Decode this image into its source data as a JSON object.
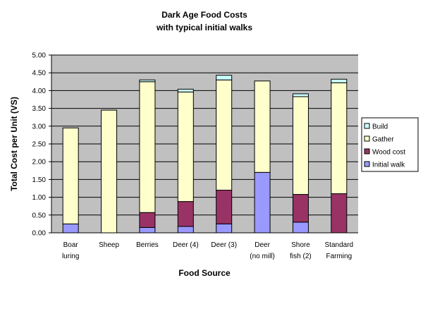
{
  "chart_data": {
    "type": "bar",
    "stacked": true,
    "title": [
      "Dark Age Food Costs",
      "with typical initial walks"
    ],
    "xlabel": "Food Source",
    "ylabel": "Total Cost per Unit (VS)",
    "ylim": [
      0,
      5
    ],
    "yticks": [
      "0.00",
      "0.50",
      "1.00",
      "1.50",
      "2.00",
      "2.50",
      "3.00",
      "3.50",
      "4.00",
      "4.50",
      "5.00"
    ],
    "grid": true,
    "legend_position": "right",
    "categories": [
      [
        "Boar",
        "luring"
      ],
      [
        "Sheep"
      ],
      [
        "Berries"
      ],
      [
        "Deer (4)"
      ],
      [
        "Deer (3)"
      ],
      [
        "Deer",
        "(no mill)"
      ],
      [
        "Shore",
        "fish (2)"
      ],
      [
        "Standard",
        "Farming"
      ]
    ],
    "series": [
      {
        "name": "Initial walk",
        "color": "#9999ff",
        "values": [
          0.25,
          0.0,
          0.15,
          0.18,
          0.25,
          1.7,
          0.3,
          0.0
        ]
      },
      {
        "name": "Wood cost",
        "color": "#993366",
        "values": [
          0.0,
          0.0,
          0.42,
          0.7,
          0.95,
          0.0,
          0.78,
          1.1
        ]
      },
      {
        "name": "Gather",
        "color": "#ffffcc",
        "values": [
          2.7,
          3.45,
          3.68,
          3.08,
          3.1,
          2.57,
          2.75,
          3.12
        ]
      },
      {
        "name": "Build",
        "color": "#ccffff",
        "values": [
          0.0,
          0.0,
          0.05,
          0.08,
          0.13,
          0.0,
          0.08,
          0.1
        ]
      }
    ],
    "legend_order": [
      "Build",
      "Gather",
      "Wood cost",
      "Initial walk"
    ],
    "colors": {
      "plot_background": "#c0c0c0",
      "grid": "#000000",
      "bar_outline": "#000000"
    }
  }
}
